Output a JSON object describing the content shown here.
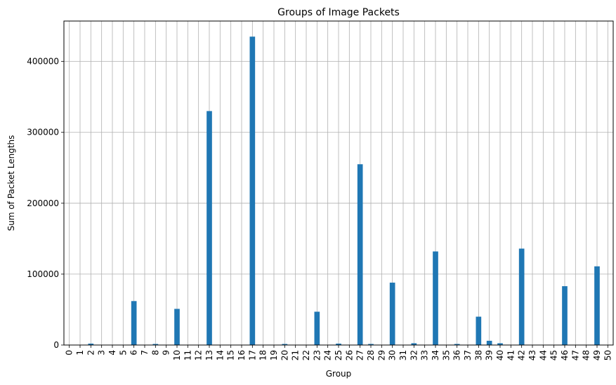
{
  "chart_data": {
    "type": "bar",
    "title": "Groups of Image Packets",
    "xlabel": "Group",
    "ylabel": "Sum of Packet Lengths",
    "categories": [
      "0",
      "1",
      "2",
      "3",
      "4",
      "5",
      "6",
      "7",
      "8",
      "9",
      "10",
      "11",
      "12",
      "13",
      "14",
      "15",
      "16",
      "17",
      "18",
      "19",
      "20",
      "21",
      "22",
      "23",
      "24",
      "25",
      "26",
      "27",
      "28",
      "29",
      "30",
      "31",
      "32",
      "33",
      "34",
      "35",
      "36",
      "37",
      "38",
      "39",
      "40",
      "41",
      "42",
      "43",
      "44",
      "45",
      "46",
      "47",
      "48",
      "49",
      "50"
    ],
    "values": [
      0,
      0,
      2000,
      0,
      0,
      0,
      62000,
      0,
      1500,
      0,
      51000,
      0,
      0,
      330000,
      0,
      0,
      0,
      435000,
      0,
      0,
      1500,
      0,
      0,
      47000,
      0,
      2000,
      0,
      255000,
      1500,
      0,
      88000,
      0,
      2500,
      0,
      132000,
      0,
      1500,
      0,
      40000,
      6000,
      2500,
      0,
      136000,
      0,
      0,
      0,
      83000,
      0,
      0,
      111000,
      0
    ],
    "ylim": [
      0,
      457000
    ],
    "yticks": [
      0,
      100000,
      200000,
      300000,
      400000
    ],
    "ytick_labels": [
      "0",
      "100000",
      "200000",
      "300000",
      "400000"
    ],
    "grid": true,
    "bar_color": "#1f77b4"
  }
}
